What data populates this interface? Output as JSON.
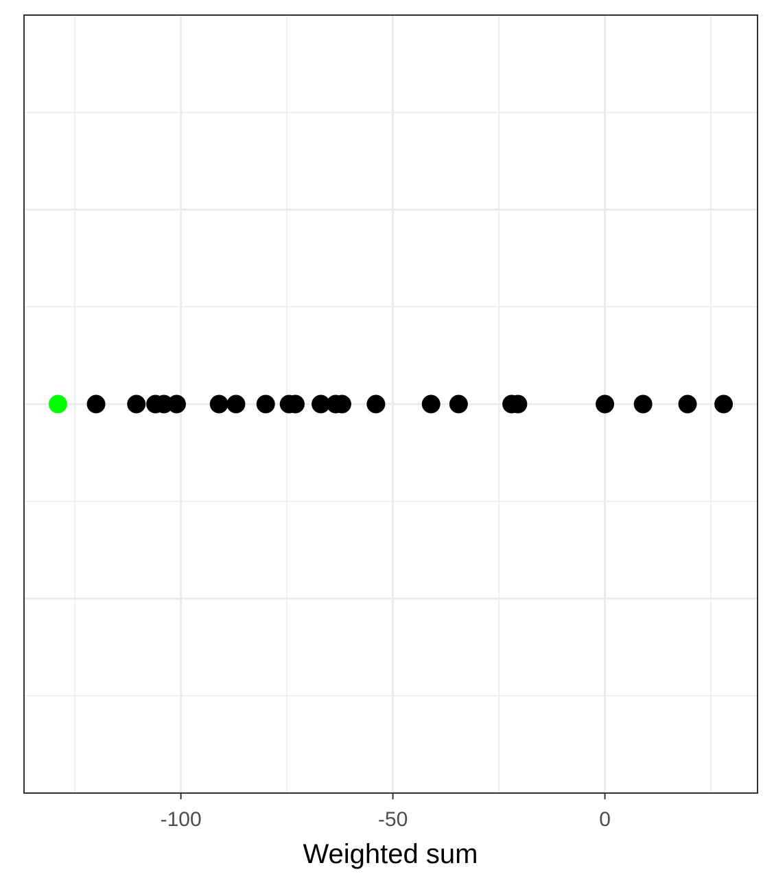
{
  "chart_data": {
    "type": "scatter",
    "title": "",
    "xlabel": "Weighted sum",
    "ylabel": "",
    "xlim": [
      -137,
      36
    ],
    "x_ticks": [
      -100,
      -50,
      0
    ],
    "x_tick_labels": [
      "-100",
      "-50",
      "0"
    ],
    "x_minor_ticks": [
      -125,
      -75,
      -25,
      25
    ],
    "grid": true,
    "legend": "none",
    "point_color": "#000000",
    "highlight_color": "#00ff00",
    "highlight": {
      "x": -129
    },
    "points": [
      {
        "x": -129,
        "highlight": true
      },
      {
        "x": -120
      },
      {
        "x": -110.5
      },
      {
        "x": -106
      },
      {
        "x": -104
      },
      {
        "x": -101
      },
      {
        "x": -91
      },
      {
        "x": -87
      },
      {
        "x": -80
      },
      {
        "x": -74.5
      },
      {
        "x": -73
      },
      {
        "x": -67
      },
      {
        "x": -63.5
      },
      {
        "x": -62
      },
      {
        "x": -54
      },
      {
        "x": -41
      },
      {
        "x": -34.5
      },
      {
        "x": -22
      },
      {
        "x": -20.5
      },
      {
        "x": 0
      },
      {
        "x": 9
      },
      {
        "x": 19.5
      },
      {
        "x": 28
      }
    ]
  }
}
